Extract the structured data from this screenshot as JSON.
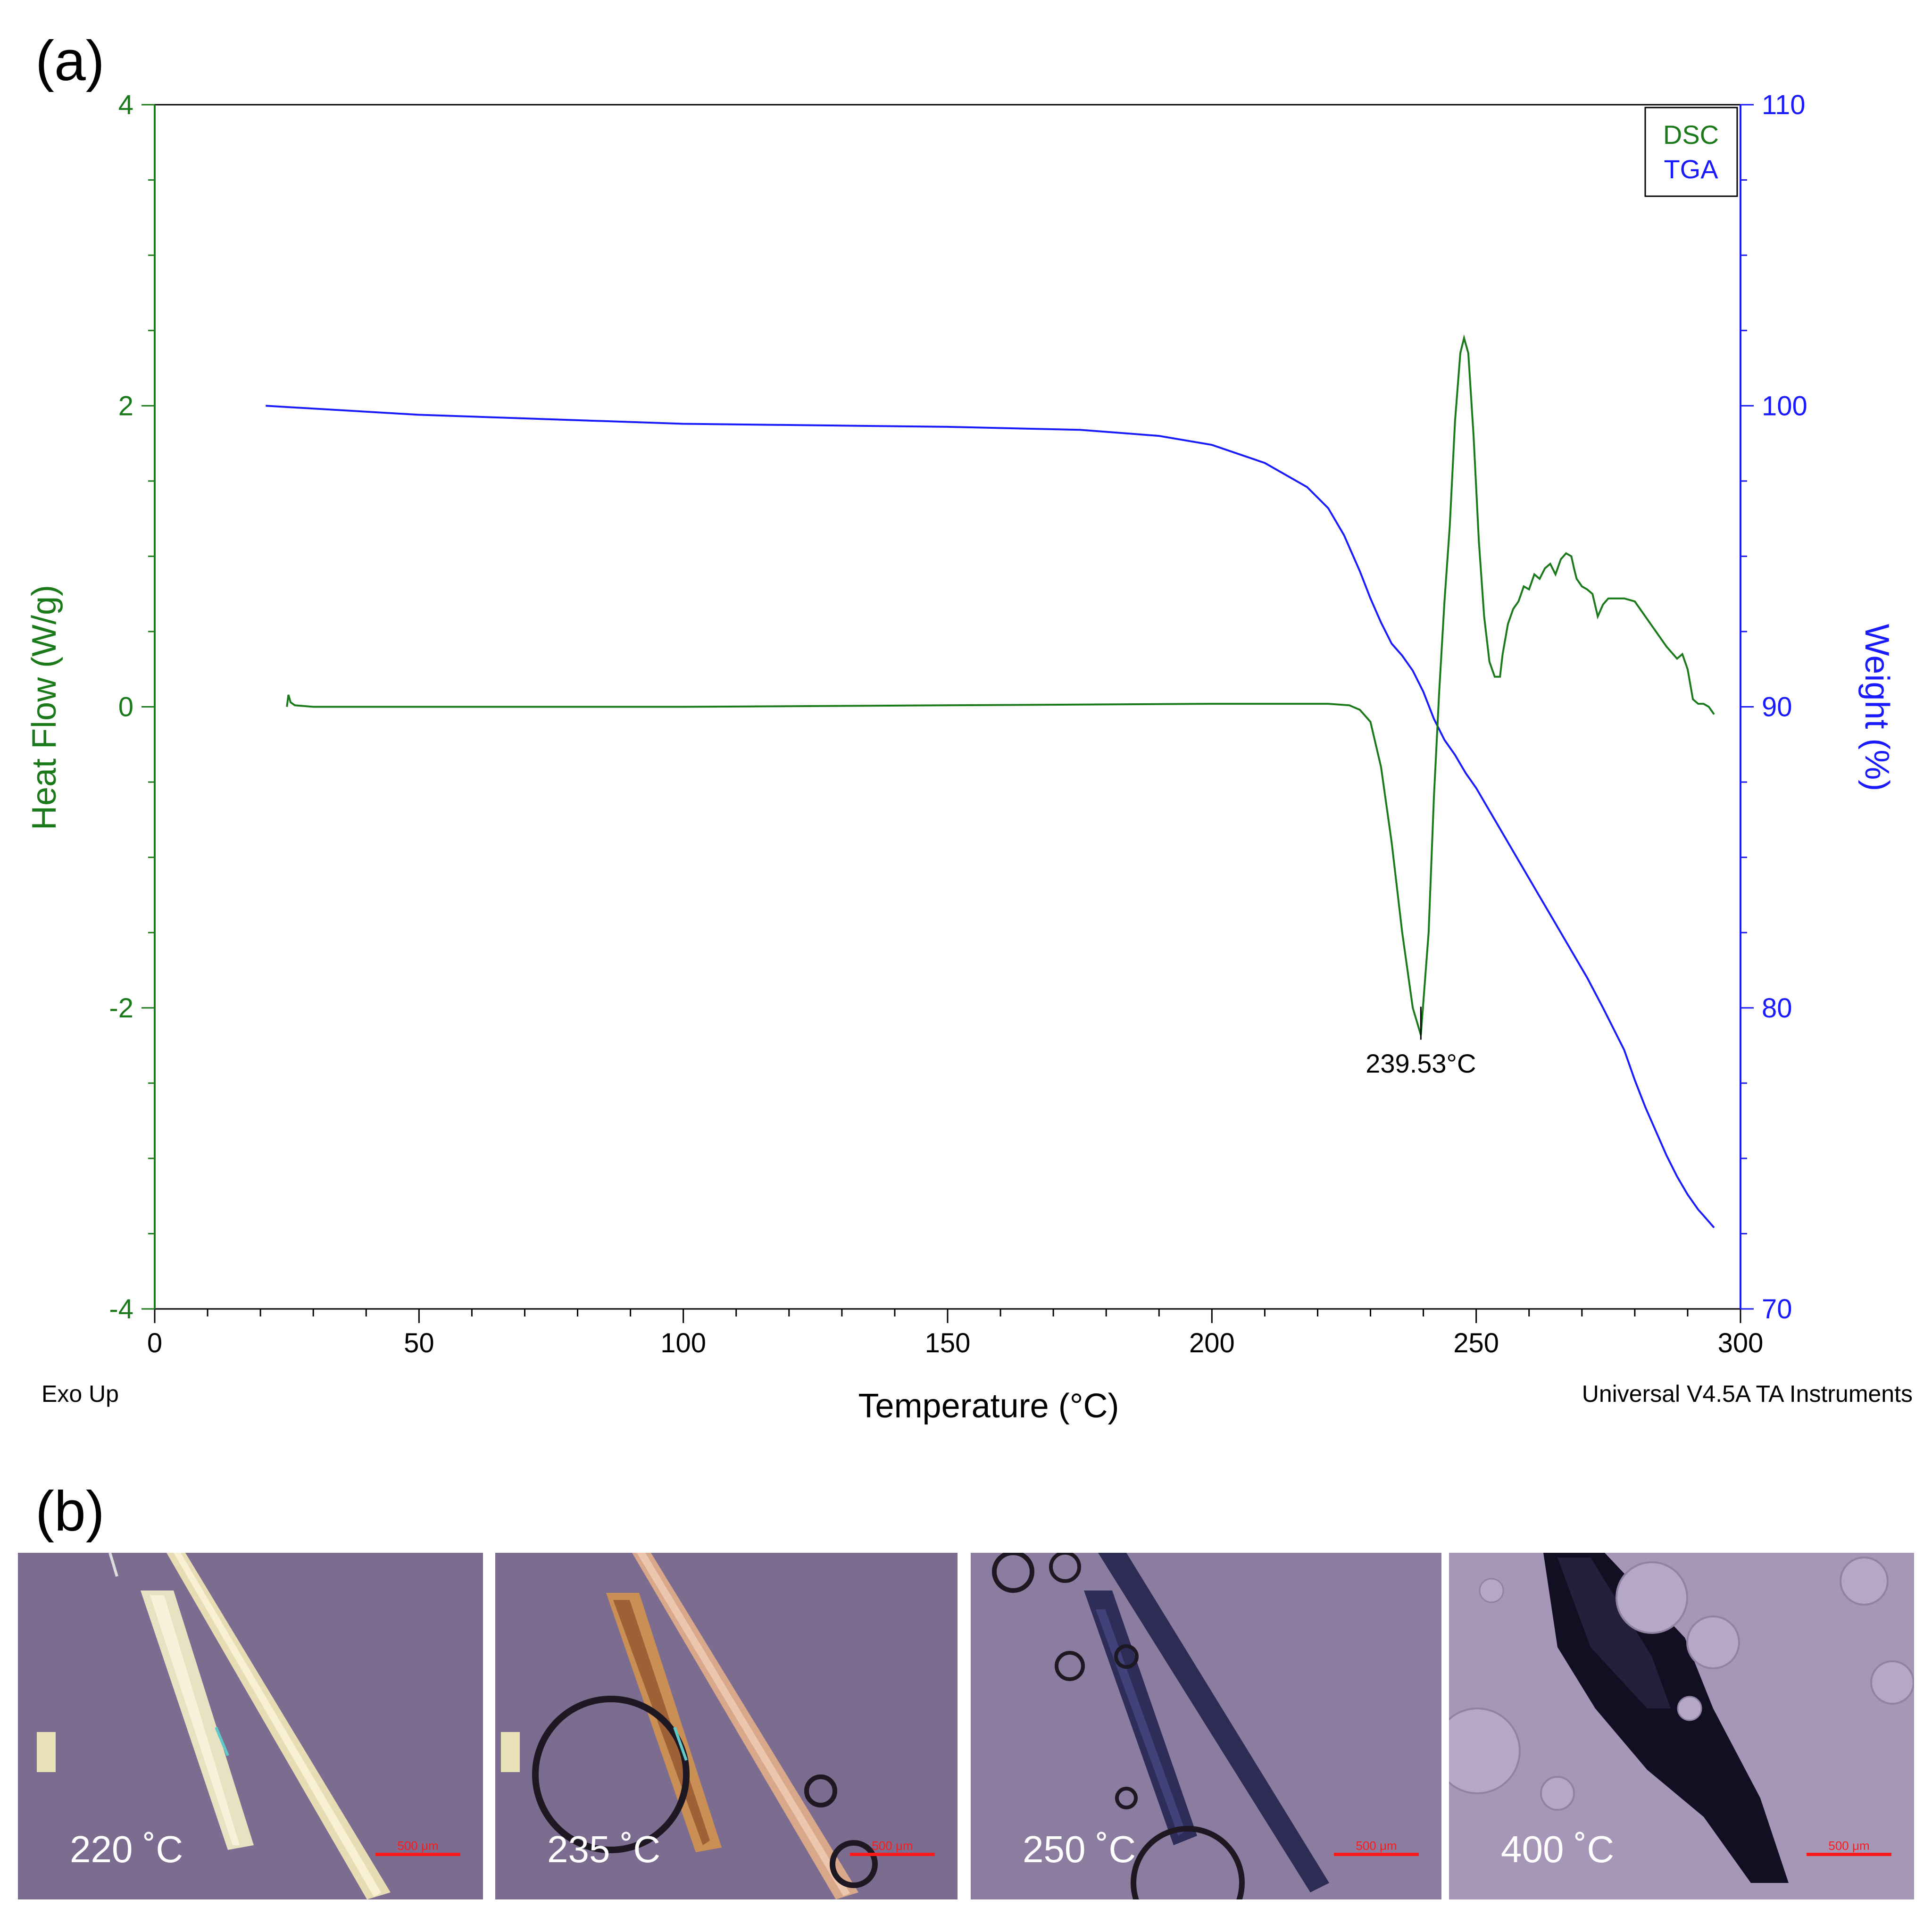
{
  "panel_a_label": "(a)",
  "panel_b_label": "(b)",
  "chart_data": {
    "type": "line",
    "title": "",
    "xlabel": "Temperature (°C)",
    "ylabel_left": "Heat Flow (W/g)",
    "ylabel_right": "Weight (%)",
    "xlim": [
      0,
      300
    ],
    "ylim_left": [
      -4,
      4
    ],
    "ylim_right": [
      70,
      110
    ],
    "x_ticks": [
      0,
      50,
      100,
      150,
      200,
      250,
      300
    ],
    "y_left_ticks": [
      -4,
      -2,
      0,
      2,
      4
    ],
    "y_right_ticks": [
      70,
      80,
      90,
      100,
      110
    ],
    "grid": false,
    "legend_position": "top-right",
    "footer_left": "Exo Up",
    "footer_right": "Universal V4.5A TA Instruments",
    "colors": {
      "DSC": "#1a7a1a",
      "TGA": "#1a1aff"
    },
    "annotation": {
      "text": "239.53°C",
      "x": 239.53,
      "y": -2.18
    },
    "series": [
      {
        "name": "DSC",
        "axis": "left",
        "points": [
          [
            25,
            0.0
          ],
          [
            25.3,
            0.08
          ],
          [
            25.7,
            0.03
          ],
          [
            26.5,
            0.01
          ],
          [
            30,
            0.0
          ],
          [
            50,
            0.0
          ],
          [
            100,
            0.0
          ],
          [
            150,
            0.01
          ],
          [
            200,
            0.02
          ],
          [
            222,
            0.02
          ],
          [
            226,
            0.01
          ],
          [
            228,
            -0.02
          ],
          [
            230,
            -0.1
          ],
          [
            232,
            -0.4
          ],
          [
            234,
            -0.9
          ],
          [
            236,
            -1.5
          ],
          [
            238,
            -2.0
          ],
          [
            239.53,
            -2.18
          ],
          [
            241,
            -1.5
          ],
          [
            242,
            -0.6
          ],
          [
            243,
            0.1
          ],
          [
            244,
            0.7
          ],
          [
            245,
            1.2
          ],
          [
            246,
            1.9
          ],
          [
            247,
            2.35
          ],
          [
            247.7,
            2.45
          ],
          [
            248.5,
            2.35
          ],
          [
            249.5,
            1.8
          ],
          [
            250.5,
            1.1
          ],
          [
            251.5,
            0.6
          ],
          [
            252.5,
            0.3
          ],
          [
            253.5,
            0.2
          ],
          [
            254.5,
            0.2
          ],
          [
            255,
            0.35
          ],
          [
            256,
            0.55
          ],
          [
            257,
            0.65
          ],
          [
            258,
            0.7
          ],
          [
            259,
            0.8
          ],
          [
            260,
            0.78
          ],
          [
            261,
            0.88
          ],
          [
            262,
            0.85
          ],
          [
            263,
            0.92
          ],
          [
            264,
            0.95
          ],
          [
            265,
            0.88
          ],
          [
            266,
            0.98
          ],
          [
            267,
            1.02
          ],
          [
            268,
            1.0
          ],
          [
            268.5,
            0.92
          ],
          [
            269,
            0.85
          ],
          [
            270,
            0.8
          ],
          [
            271,
            0.78
          ],
          [
            272,
            0.75
          ],
          [
            273,
            0.6
          ],
          [
            274,
            0.68
          ],
          [
            275,
            0.72
          ],
          [
            276,
            0.72
          ],
          [
            278,
            0.72
          ],
          [
            280,
            0.7
          ],
          [
            282,
            0.6
          ],
          [
            284,
            0.5
          ],
          [
            286,
            0.4
          ],
          [
            288,
            0.32
          ],
          [
            289,
            0.35
          ],
          [
            290,
            0.25
          ],
          [
            291,
            0.05
          ],
          [
            292,
            0.02
          ],
          [
            293,
            0.02
          ],
          [
            294,
            0.0
          ],
          [
            295,
            -0.05
          ]
        ]
      },
      {
        "name": "TGA",
        "axis": "right",
        "points": [
          [
            21,
            100.0
          ],
          [
            50,
            99.7
          ],
          [
            100,
            99.4
          ],
          [
            150,
            99.3
          ],
          [
            175,
            99.2
          ],
          [
            190,
            99.0
          ],
          [
            200,
            98.7
          ],
          [
            210,
            98.1
          ],
          [
            218,
            97.3
          ],
          [
            222,
            96.6
          ],
          [
            225,
            95.7
          ],
          [
            228,
            94.5
          ],
          [
            230,
            93.6
          ],
          [
            232,
            92.8
          ],
          [
            234,
            92.1
          ],
          [
            236,
            91.7
          ],
          [
            238,
            91.2
          ],
          [
            240,
            90.5
          ],
          [
            242,
            89.6
          ],
          [
            244,
            88.9
          ],
          [
            246,
            88.4
          ],
          [
            248,
            87.8
          ],
          [
            250,
            87.3
          ],
          [
            252,
            86.7
          ],
          [
            254,
            86.1
          ],
          [
            256,
            85.5
          ],
          [
            258,
            84.9
          ],
          [
            260,
            84.3
          ],
          [
            262,
            83.7
          ],
          [
            265,
            82.8
          ],
          [
            268,
            81.9
          ],
          [
            271,
            81.0
          ],
          [
            274,
            80.0
          ],
          [
            276,
            79.3
          ],
          [
            278,
            78.6
          ],
          [
            280,
            77.6
          ],
          [
            282,
            76.7
          ],
          [
            284,
            75.9
          ],
          [
            286,
            75.1
          ],
          [
            288,
            74.4
          ],
          [
            290,
            73.8
          ],
          [
            292,
            73.3
          ],
          [
            293,
            73.1
          ],
          [
            295,
            72.7
          ]
        ]
      }
    ]
  },
  "micrographs": [
    {
      "temperature": "220 ˚C",
      "scale_label": "500 μm"
    },
    {
      "temperature": "235 ˚C",
      "scale_label": "500 μm"
    },
    {
      "temperature": "250 ˚C",
      "scale_label": "500 μm"
    },
    {
      "temperature": "400 ˚C",
      "scale_label": "500 μm"
    }
  ]
}
